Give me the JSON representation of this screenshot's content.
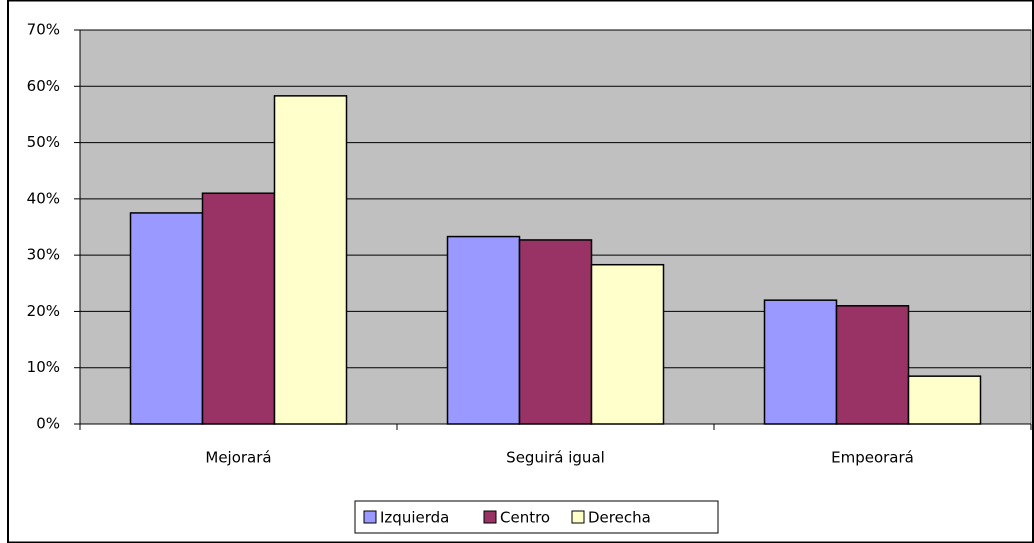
{
  "chart_data": {
    "type": "bar",
    "categories": [
      "Mejorará",
      "Seguirá igual",
      "Empeorará"
    ],
    "series": [
      {
        "name": "Izquierda",
        "color": "#9999ff",
        "values": [
          37.5,
          33.3,
          22
        ]
      },
      {
        "name": "Centro",
        "color": "#993366",
        "values": [
          41,
          32.7,
          21
        ]
      },
      {
        "name": "Derecha",
        "color": "#ffffcc",
        "values": [
          58.3,
          28.3,
          8.5
        ]
      }
    ],
    "ylim": [
      0,
      70
    ],
    "yticks": [
      {
        "value": 0,
        "label": "0%"
      },
      {
        "value": 10,
        "label": "10%"
      },
      {
        "value": 20,
        "label": "20%"
      },
      {
        "value": 30,
        "label": "30%"
      },
      {
        "value": 40,
        "label": "40%"
      },
      {
        "value": 50,
        "label": "50%"
      },
      {
        "value": 60,
        "label": "60%"
      },
      {
        "value": 70,
        "label": "70%"
      }
    ],
    "grid": true,
    "legend": "bottom",
    "plot_background": "#c0c0c0"
  }
}
